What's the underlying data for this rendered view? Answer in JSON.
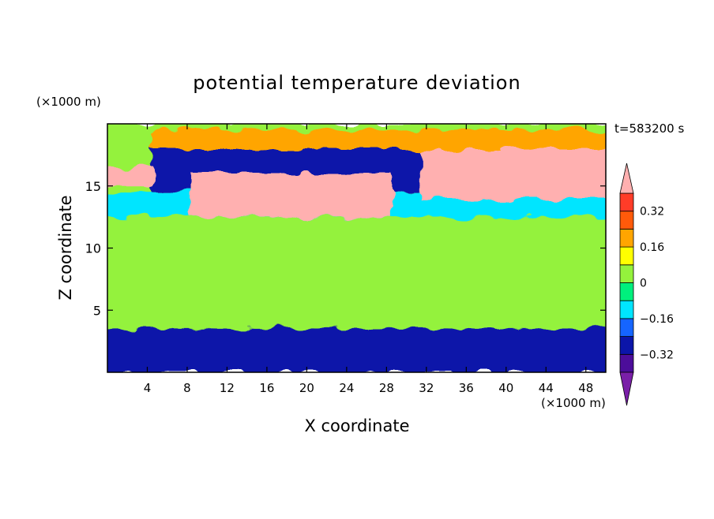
{
  "chart_data": {
    "type": "heatmap",
    "title": "potential temperature deviation",
    "xlabel": "X coordinate",
    "ylabel": "Z coordinate",
    "x_unit": "(×1000 m)",
    "y_unit": "(×1000 m)",
    "time_label": "t=583200 s",
    "xlim": [
      0,
      50
    ],
    "ylim": [
      0,
      20
    ],
    "x_ticks": [
      4,
      8,
      12,
      16,
      20,
      24,
      28,
      32,
      36,
      40,
      44,
      48
    ],
    "y_ticks": [
      5,
      10,
      15
    ],
    "colorbar": {
      "levels": [
        -0.4,
        -0.32,
        -0.24,
        -0.16,
        -0.08,
        0,
        0.08,
        0.16,
        0.24,
        0.32,
        0.4
      ],
      "tick_labels": [
        "0.32",
        "0.16",
        "0",
        "−0.16",
        "−0.32"
      ],
      "tick_values": [
        0.32,
        0.16,
        0,
        -0.16,
        -0.32
      ],
      "colors": [
        "#7a1fa8",
        "#4c0d9a",
        "#0b15a9",
        "#1565ff",
        "#00e5ff",
        "#00f07d",
        "#94f23c",
        "#ffff00",
        "#ffa500",
        "#ff5a0a",
        "#ff3c28",
        "#ffb0b0"
      ],
      "extend": "both"
    },
    "field_regions": [
      {
        "x": [
          0,
          50
        ],
        "z": [
          0,
          20
        ],
        "value": 0.05
      },
      {
        "x": [
          0,
          50
        ],
        "z": [
          3.5,
          9
        ],
        "value": 0.02
      },
      {
        "x": [
          0,
          50
        ],
        "z": [
          12.5,
          14.5
        ],
        "value": -0.12
      },
      {
        "x": [
          5,
          50
        ],
        "z": [
          17.5,
          19.5
        ],
        "value": 0.18
      },
      {
        "x": [
          5,
          50
        ],
        "z": [
          14.5,
          18
        ],
        "value": -0.3
      },
      {
        "x": [
          9,
          28
        ],
        "z": [
          12.5,
          16
        ],
        "value": 0.42
      },
      {
        "x": [
          32,
          50
        ],
        "z": [
          14,
          18
        ],
        "value": 0.42
      },
      {
        "x": [
          0,
          4
        ],
        "z": [
          15,
          16.5
        ],
        "value": 0.42
      },
      {
        "x": [
          0,
          50
        ],
        "z": [
          0,
          3.5
        ],
        "value": -0.3
      }
    ]
  }
}
